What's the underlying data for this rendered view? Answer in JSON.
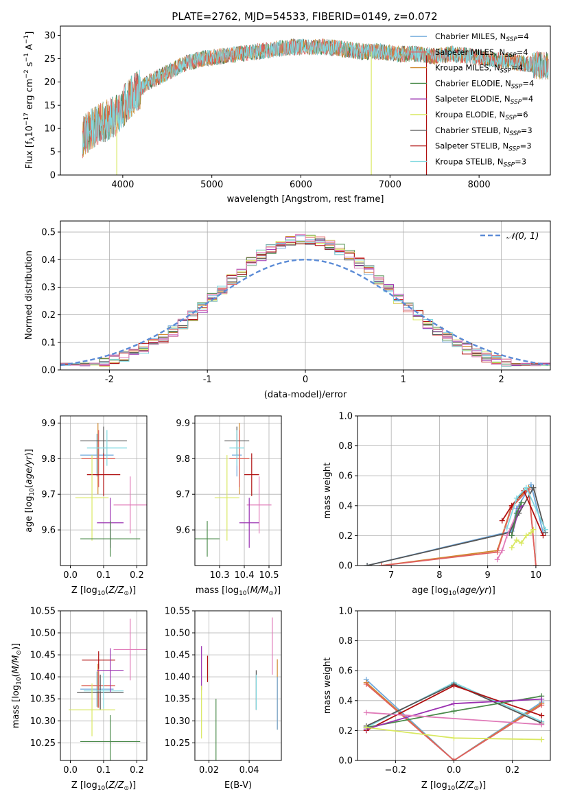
{
  "figure_title": "PLATE=2762, MJD=54533, FIBERID=0149, z=0.072",
  "colors": {
    "Chabrier MILES": "#6fa8dc",
    "Salpeter MILES": "#e06060",
    "Kroupa MILES": "#d08a30",
    "Chabrier ELODIE": "#4a8a4a",
    "Salpeter ELODIE": "#9a30b0",
    "Kroupa ELODIE": "#d9e860",
    "Chabrier STELIB": "#555555",
    "Salpeter STELIB": "#b01010",
    "Kroupa STELIB": "#80d8e0",
    "pink": "#e07ab8",
    "normal": "#5b8bd6"
  },
  "chart_data": [
    {
      "id": "spectrum",
      "type": "line",
      "xlabel": "wavelength [Angstrom, rest frame]",
      "ylabel": "Flux [fλ10−17 erg cm−2 s−1 A−1]",
      "xlim": [
        3300,
        8800
      ],
      "ylim": [
        0,
        32
      ],
      "xticks": [
        4000,
        5000,
        6000,
        7000,
        8000
      ],
      "yticks": [
        0,
        5,
        10,
        15,
        20,
        25,
        30
      ],
      "legend_position": "upper-right",
      "legend": [
        "Chabrier MILES, NSSP=4",
        "Salpeter MILES, NSSP=4",
        "Kroupa MILES, NSSP=4",
        "Chabrier ELODIE, NSSP=4",
        "Salpeter ELODIE, NSSP=4",
        "Kroupa ELODIE, NSSP=6",
        "Chabrier STELIB, NSSP=3",
        "Salpeter STELIB, NSSP=3",
        "Kroupa STELIB, NSSP=3"
      ],
      "x": [
        3550,
        3650,
        3750,
        3850,
        3950,
        4050,
        4150,
        4300,
        4500,
        4700,
        4900,
        5100,
        5300,
        5500,
        5700,
        5900,
        6100,
        6300,
        6500,
        6700,
        6900,
        7100,
        7300,
        7500,
        7700,
        7900,
        8100,
        8300,
        8500,
        8700
      ],
      "y": [
        8,
        10,
        11,
        12,
        13,
        16,
        18,
        20,
        22,
        24,
        25,
        25.5,
        26,
        26.5,
        27,
        27.5,
        27.5,
        27.5,
        27,
        26.5,
        26.5,
        26,
        26,
        25.5,
        26,
        25.5,
        25,
        24.5,
        24,
        23.5
      ],
      "dips": [
        {
          "x": 3933,
          "series": "Kroupa ELODIE"
        },
        {
          "x": 6790,
          "series": "Kroupa ELODIE"
        },
        {
          "x": 7410,
          "series": "Salpeter STELIB"
        }
      ]
    },
    {
      "id": "residuals",
      "type": "histogram",
      "xlabel": "(data-model)/error",
      "ylabel": "Normed distribution",
      "xlim": [
        -2.5,
        2.5
      ],
      "ylim": [
        0,
        0.54
      ],
      "xticks": [
        -2,
        -1,
        0,
        1,
        2
      ],
      "yticks": [
        0.0,
        0.1,
        0.2,
        0.3,
        0.4,
        0.5
      ],
      "grid": true,
      "legend": [
        "𝒩(0, 1)"
      ],
      "bin_width": 0.1
    },
    {
      "id": "age-vs-Z",
      "type": "errorbar",
      "xlabel": "Z [log10(Z/Z⊙)]",
      "ylabel": "age  [log10(age/yr)]",
      "xlim": [
        -0.03,
        0.23
      ],
      "ylim": [
        9.5,
        9.92
      ],
      "xticks": [
        0.0,
        0.1,
        0.2
      ],
      "yticks": [
        9.6,
        9.7,
        9.8,
        9.9
      ],
      "grid": true,
      "points": [
        {
          "series": "Chabrier MILES",
          "x": 0.08,
          "xerr": 0.05,
          "y": 9.81,
          "yerr": 0.06
        },
        {
          "series": "Kroupa MILES",
          "x": 0.083,
          "xerr": 0.05,
          "y": 9.8,
          "yerr": 0.1
        },
        {
          "series": "Salpeter MILES",
          "x": 0.085,
          "xerr": 0.05,
          "y": 9.8,
          "yerr": 0.08
        },
        {
          "series": "Chabrier STELIB",
          "x": 0.1,
          "xerr": 0.07,
          "y": 9.85,
          "yerr": 0.04
        },
        {
          "series": "Kroupa STELIB",
          "x": 0.11,
          "xerr": 0.06,
          "y": 9.83,
          "yerr": 0.05
        },
        {
          "series": "Salpeter STELIB",
          "x": 0.1,
          "xerr": 0.05,
          "y": 9.755,
          "yerr": 0.06
        },
        {
          "series": "pink",
          "x": 0.18,
          "xerr": 0.05,
          "y": 9.67,
          "yerr": 0.08
        },
        {
          "series": "Kroupa ELODIE",
          "x": 0.065,
          "xerr": 0.05,
          "y": 9.69,
          "yerr": 0.12
        },
        {
          "series": "Salpeter ELODIE",
          "x": 0.12,
          "xerr": 0.04,
          "y": 9.62,
          "yerr": 0.07
        },
        {
          "series": "Chabrier ELODIE",
          "x": 0.12,
          "xerr": 0.09,
          "y": 9.575,
          "yerr": 0.05
        }
      ]
    },
    {
      "id": "age-vs-mass",
      "type": "errorbar",
      "xlabel": "mass [log10(M/M⊙)]",
      "ylabel": "",
      "xlim": [
        10.2,
        10.55
      ],
      "ylim": [
        9.5,
        9.92
      ],
      "xticks": [
        10.3,
        10.4,
        10.5
      ],
      "yticks": [
        9.6,
        9.7,
        9.8,
        9.9
      ],
      "grid": true,
      "points": [
        {
          "series": "Chabrier MILES",
          "x": 10.37,
          "xerr": 0.02,
          "y": 9.81,
          "yerr": 0.06
        },
        {
          "series": "Kroupa MILES",
          "x": 10.38,
          "xerr": 0.04,
          "y": 9.8,
          "yerr": 0.1
        },
        {
          "series": "Salpeter MILES",
          "x": 10.38,
          "xerr": 0.04,
          "y": 9.8,
          "yerr": 0.08
        },
        {
          "series": "Chabrier STELIB",
          "x": 10.37,
          "xerr": 0.05,
          "y": 9.85,
          "yerr": 0.04
        },
        {
          "series": "Kroupa STELIB",
          "x": 10.37,
          "xerr": 0.03,
          "y": 9.83,
          "yerr": 0.05
        },
        {
          "series": "Salpeter STELIB",
          "x": 10.43,
          "xerr": 0.03,
          "y": 9.755,
          "yerr": 0.06
        },
        {
          "series": "pink",
          "x": 10.46,
          "xerr": 0.05,
          "y": 9.67,
          "yerr": 0.08
        },
        {
          "series": "Kroupa ELODIE",
          "x": 10.33,
          "xerr": 0.05,
          "y": 9.69,
          "yerr": 0.12
        },
        {
          "series": "Salpeter ELODIE",
          "x": 10.42,
          "xerr": 0.04,
          "y": 9.62,
          "yerr": 0.07
        },
        {
          "series": "Chabrier ELODIE",
          "x": 10.25,
          "xerr": 0.05,
          "y": 9.575,
          "yerr": 0.05
        }
      ]
    },
    {
      "id": "weight-vs-age",
      "type": "line",
      "xlabel": "age  [log10(age/yr)]",
      "ylabel": "mass weight",
      "xlim": [
        6.3,
        10.3
      ],
      "ylim": [
        0,
        1.0
      ],
      "xticks": [
        7,
        8,
        9,
        10
      ],
      "yticks": [
        0.0,
        0.2,
        0.4,
        0.6,
        0.8,
        1.0
      ],
      "grid": true,
      "series": [
        {
          "color": "Chabrier MILES",
          "x": [
            6.5,
            9.5,
            9.6,
            9.9,
            10.15
          ],
          "y": [
            0.0,
            0.23,
            0.38,
            0.54,
            0.22
          ]
        },
        {
          "color": "Kroupa MILES",
          "x": [
            6.8,
            9.2,
            9.5,
            9.85,
            10.0
          ],
          "y": [
            0.0,
            0.1,
            0.4,
            0.52,
            0.0
          ]
        },
        {
          "color": "Salpeter MILES",
          "x": [
            6.8,
            9.2,
            9.5,
            9.85,
            10.0
          ],
          "y": [
            0.0,
            0.09,
            0.39,
            0.51,
            0.0
          ]
        },
        {
          "color": "Chabrier STELIB",
          "x": [
            6.5,
            9.45,
            9.65,
            9.95,
            10.2
          ],
          "y": [
            0.0,
            0.22,
            0.35,
            0.52,
            0.22
          ]
        },
        {
          "color": "Salpeter STELIB",
          "x": [
            9.3,
            9.5,
            9.75,
            10.15
          ],
          "y": [
            0.3,
            0.4,
            0.5,
            0.2
          ]
        },
        {
          "color": "Kroupa STELIB",
          "x": [
            9.4,
            9.6,
            9.8,
            10.2
          ],
          "y": [
            0.25,
            0.45,
            0.52,
            0.24
          ]
        },
        {
          "color": "Kroupa ELODIE",
          "x": [
            9.5,
            9.6,
            9.7,
            9.8,
            9.9,
            9.95
          ],
          "y": [
            0.12,
            0.17,
            0.15,
            0.2,
            0.22,
            0.24
          ]
        },
        {
          "color": "pink",
          "x": [
            9.2,
            9.3,
            9.4,
            9.65
          ],
          "y": [
            0.04,
            0.1,
            0.2,
            0.38
          ]
        },
        {
          "color": "Salpeter ELODIE",
          "x": [
            9.5,
            9.65,
            9.7
          ],
          "y": [
            0.2,
            0.38,
            0.4
          ]
        },
        {
          "color": "Chabrier ELODIE",
          "x": [
            9.5,
            9.6,
            9.7
          ],
          "y": [
            0.2,
            0.35,
            0.42
          ]
        }
      ]
    },
    {
      "id": "mass-vs-Z",
      "type": "errorbar",
      "xlabel": "Z [log10(Z/Z⊙)]",
      "ylabel": "mass [log10(M/M⊙)]",
      "xlim": [
        -0.03,
        0.23
      ],
      "ylim": [
        10.21,
        10.55
      ],
      "xticks": [
        0.0,
        0.1,
        0.2
      ],
      "yticks": [
        10.25,
        10.3,
        10.35,
        10.4,
        10.45,
        10.5,
        10.55
      ],
      "grid": true,
      "points": [
        {
          "series": "Chabrier MILES",
          "x": 0.08,
          "xerr": 0.05,
          "y": 10.372,
          "yerr": 0.04
        },
        {
          "series": "Kroupa MILES",
          "x": 0.083,
          "xerr": 0.05,
          "y": 10.38,
          "yerr": 0.05
        },
        {
          "series": "Salpeter MILES",
          "x": 0.085,
          "xerr": 0.05,
          "y": 10.38,
          "yerr": 0.05
        },
        {
          "series": "Chabrier STELIB",
          "x": 0.09,
          "xerr": 0.07,
          "y": 10.365,
          "yerr": 0.04
        },
        {
          "series": "Kroupa STELIB",
          "x": 0.1,
          "xerr": 0.06,
          "y": 10.368,
          "yerr": 0.04
        },
        {
          "series": "Salpeter STELIB",
          "x": 0.085,
          "xerr": 0.05,
          "y": 10.438,
          "yerr": 0.02
        },
        {
          "series": "pink",
          "x": 0.18,
          "xerr": 0.05,
          "y": 10.462,
          "yerr": 0.07
        },
        {
          "series": "Kroupa ELODIE",
          "x": 0.065,
          "xerr": 0.07,
          "y": 10.325,
          "yerr": 0.06
        },
        {
          "series": "Salpeter ELODIE",
          "x": 0.12,
          "xerr": 0.04,
          "y": 10.415,
          "yerr": 0.05
        },
        {
          "series": "Chabrier ELODIE",
          "x": 0.12,
          "xerr": 0.09,
          "y": 10.253,
          "yerr": 0.06
        }
      ]
    },
    {
      "id": "mass-vs-EBV",
      "type": "errorbar",
      "xlabel": "E(B-V)",
      "ylabel": "",
      "xlim": [
        0.013,
        0.056
      ],
      "ylim": [
        10.21,
        10.55
      ],
      "xticks": [
        0.02,
        0.04
      ],
      "yticks": [
        10.25,
        10.3,
        10.35,
        10.4,
        10.45,
        10.5,
        10.55
      ],
      "grid": true,
      "points": [
        {
          "series": "Salpeter ELODIE",
          "x": 0.0163,
          "y": 10.42,
          "yerr": 0.05
        },
        {
          "series": "Kroupa ELODIE",
          "x": 0.0163,
          "y": 10.32,
          "yerr": 0.06
        },
        {
          "series": "Salpeter STELIB",
          "x": 0.0193,
          "y": 10.418,
          "yerr": 0.03
        },
        {
          "series": "Chabrier ELODIE",
          "x": 0.0235,
          "y": 10.28,
          "yerr": 0.07
        },
        {
          "series": "Chabrier STELIB",
          "x": 0.0435,
          "y": 10.37,
          "yerr": 0.045
        },
        {
          "series": "Kroupa STELIB",
          "x": 0.0435,
          "y": 10.365,
          "yerr": 0.04
        },
        {
          "series": "pink",
          "x": 0.0515,
          "y": 10.47,
          "yerr": 0.065
        },
        {
          "series": "Kroupa MILES",
          "x": 0.054,
          "y": 10.36,
          "yerr": 0.08
        },
        {
          "series": "Chabrier MILES",
          "x": 0.054,
          "y": 10.34,
          "yerr": 0.06
        }
      ]
    },
    {
      "id": "weight-vs-Z",
      "type": "line",
      "xlabel": "Z [log10(Z/Z⊙)]",
      "ylabel": "mass weight",
      "xlim": [
        -0.33,
        0.33
      ],
      "ylim": [
        0,
        1.0
      ],
      "xticks": [
        -0.2,
        0.0,
        0.2
      ],
      "yticks": [
        0.0,
        0.2,
        0.4,
        0.6,
        0.8,
        1.0
      ],
      "grid": true,
      "series": [
        {
          "color": "Chabrier MILES",
          "x": [
            -0.3,
            0.0,
            0.3
          ],
          "y": [
            0.54,
            0.0,
            0.39
          ]
        },
        {
          "color": "Kroupa MILES",
          "x": [
            -0.3,
            0.0,
            0.3
          ],
          "y": [
            0.52,
            0.0,
            0.38
          ]
        },
        {
          "color": "Salpeter MILES",
          "x": [
            -0.3,
            0.0,
            0.3
          ],
          "y": [
            0.51,
            0.0,
            0.37
          ]
        },
        {
          "color": "Kroupa STELIB",
          "x": [
            -0.3,
            0.0,
            0.3
          ],
          "y": [
            0.22,
            0.52,
            0.26
          ]
        },
        {
          "color": "Chabrier STELIB",
          "x": [
            -0.3,
            0.0,
            0.3
          ],
          "y": [
            0.23,
            0.51,
            0.25
          ]
        },
        {
          "color": "Salpeter STELIB",
          "x": [
            -0.3,
            0.0,
            0.3
          ],
          "y": [
            0.2,
            0.5,
            0.3
          ]
        },
        {
          "color": "Chabrier ELODIE",
          "x": [
            -0.3,
            0.0,
            0.3
          ],
          "y": [
            0.22,
            0.33,
            0.43
          ]
        },
        {
          "color": "Salpeter ELODIE",
          "x": [
            -0.3,
            0.0,
            0.3
          ],
          "y": [
            0.21,
            0.38,
            0.41
          ]
        },
        {
          "color": "pink",
          "x": [
            -0.3,
            0.3
          ],
          "y": [
            0.32,
            0.24
          ]
        },
        {
          "color": "Kroupa ELODIE",
          "x": [
            -0.3,
            0.0,
            0.3
          ],
          "y": [
            0.22,
            0.15,
            0.14
          ]
        }
      ]
    }
  ]
}
